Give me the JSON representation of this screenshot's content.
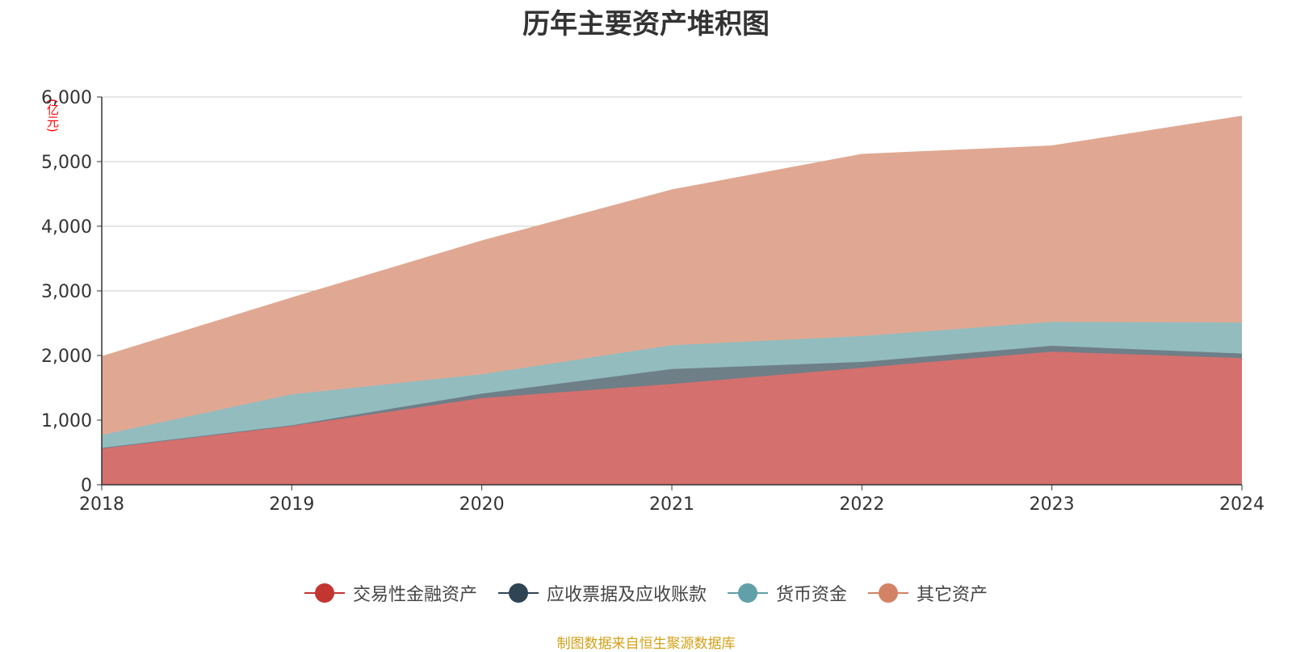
{
  "chart_data": {
    "type": "area",
    "stacked": true,
    "title": "历年主要资产堆积图",
    "unit_label": "(亿元)",
    "x": [
      "2018",
      "2019",
      "2020",
      "2021",
      "2022",
      "2023",
      "2024"
    ],
    "ylim": [
      0,
      6000
    ],
    "y_ticks": [
      "0",
      "1,000",
      "2,000",
      "3,000",
      "4,000",
      "5,000",
      "6,000"
    ],
    "grid": true,
    "legend_position": "bottom",
    "series": [
      {
        "name": "交易性金融资产",
        "color": "#c23531",
        "fill": "#d4706e",
        "values": [
          560,
          910,
          1340,
          1560,
          1810,
          2060,
          1960
        ]
      },
      {
        "name": "应收票据及应收账款",
        "color": "#2f4554",
        "fill": "#6e7f88",
        "values": [
          10,
          10,
          70,
          230,
          90,
          90,
          70
        ]
      },
      {
        "name": "货币资金",
        "color": "#61a0a8",
        "fill": "#93bcbf",
        "values": [
          200,
          480,
          300,
          370,
          400,
          370,
          480
        ]
      },
      {
        "name": "其它资产",
        "color": "#d48265",
        "fill": "#e0a892",
        "values": [
          1210,
          1490,
          2060,
          2400,
          2810,
          2720,
          3190
        ]
      }
    ]
  },
  "source_note": "制图数据来自恒生聚源数据库"
}
